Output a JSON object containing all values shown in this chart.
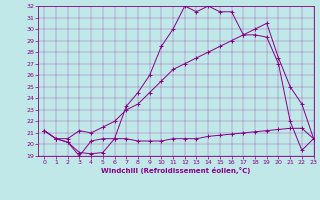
{
  "xlabel": "Windchill (Refroidissement éolien,°C)",
  "xlim": [
    -0.5,
    23
  ],
  "ylim": [
    19,
    32
  ],
  "xticks": [
    0,
    1,
    2,
    3,
    4,
    5,
    6,
    7,
    8,
    9,
    10,
    11,
    12,
    13,
    14,
    15,
    16,
    17,
    18,
    19,
    20,
    21,
    22,
    23
  ],
  "yticks": [
    19,
    20,
    21,
    22,
    23,
    24,
    25,
    26,
    27,
    28,
    29,
    30,
    31,
    32
  ],
  "bg_color": "#c0e8e8",
  "line_color": "#880088",
  "curve1_x": [
    0,
    1,
    2,
    3,
    4,
    5,
    6,
    7,
    8,
    9,
    10,
    11,
    12,
    13,
    14,
    15,
    16,
    17,
    18,
    19,
    20,
    21,
    22,
    23
  ],
  "curve1_y": [
    21.2,
    20.5,
    20.2,
    19.0,
    20.3,
    20.5,
    20.5,
    20.5,
    20.3,
    20.3,
    20.3,
    20.5,
    20.5,
    20.5,
    20.7,
    20.8,
    20.9,
    21.0,
    21.1,
    21.2,
    21.3,
    21.4,
    21.4,
    20.5
  ],
  "curve2_x": [
    0,
    1,
    2,
    3,
    4,
    5,
    6,
    7,
    8,
    9,
    10,
    11,
    12,
    13,
    14,
    15,
    16,
    17,
    18,
    19,
    20,
    21,
    22,
    23
  ],
  "curve2_y": [
    21.2,
    20.5,
    20.2,
    19.3,
    19.2,
    19.3,
    20.5,
    23.3,
    24.5,
    26.0,
    28.5,
    30.0,
    32.0,
    31.5,
    32.0,
    31.5,
    31.5,
    29.5,
    29.5,
    29.3,
    27.0,
    22.0,
    19.5,
    20.5
  ],
  "curve3_x": [
    0,
    1,
    2,
    3,
    4,
    5,
    6,
    7,
    8,
    9,
    10,
    11,
    12,
    13,
    14,
    15,
    16,
    17,
    18,
    19,
    20,
    21,
    22,
    23
  ],
  "curve3_y": [
    21.2,
    20.5,
    20.5,
    21.2,
    21.0,
    21.5,
    22.0,
    23.0,
    23.5,
    24.5,
    25.5,
    26.5,
    27.0,
    27.5,
    28.0,
    28.5,
    29.0,
    29.5,
    30.0,
    30.5,
    27.5,
    25.0,
    23.5,
    20.5
  ]
}
